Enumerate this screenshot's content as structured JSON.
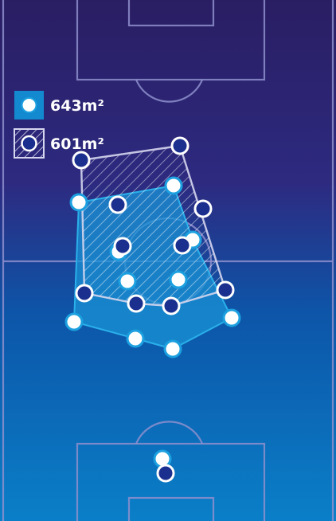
{
  "legend": {
    "team_a": {
      "area_label": "643m²",
      "marker": "white-dot",
      "fill": "#1389cf"
    },
    "team_b": {
      "area_label": "601m²",
      "marker": "navy-dot",
      "fill": "hatched"
    }
  },
  "colors": {
    "background_top": "#2a1e63",
    "background_bottom": "#0a76c2",
    "pitch_lines": "#8f90cf",
    "team_a_dot": "#ffffff",
    "team_a_ring": "#1ca0df",
    "team_b_dot": "#1b2f8f",
    "team_b_ring": "#ffffff"
  }
}
